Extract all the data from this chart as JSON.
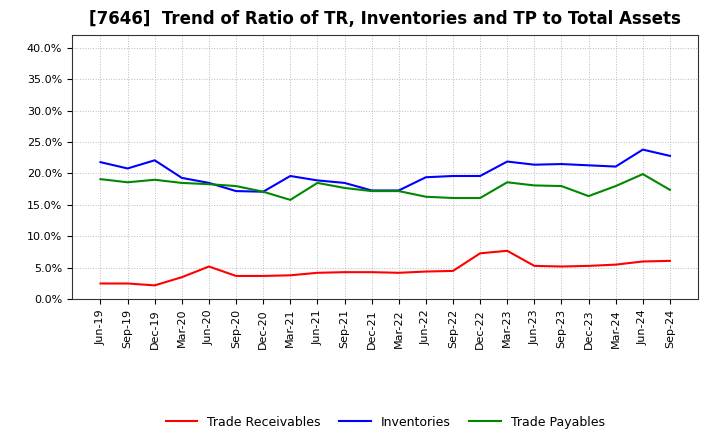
{
  "title": "[7646]  Trend of Ratio of TR, Inventories and TP to Total Assets",
  "x_labels": [
    "Jun-19",
    "Sep-19",
    "Dec-19",
    "Mar-20",
    "Jun-20",
    "Sep-20",
    "Dec-20",
    "Mar-21",
    "Jun-21",
    "Sep-21",
    "Dec-21",
    "Mar-22",
    "Jun-22",
    "Sep-22",
    "Dec-22",
    "Mar-23",
    "Jun-23",
    "Sep-23",
    "Dec-23",
    "Mar-24",
    "Jun-24",
    "Sep-24"
  ],
  "trade_receivables": [
    2.5,
    2.5,
    2.2,
    3.5,
    5.2,
    3.7,
    3.7,
    3.8,
    4.2,
    4.3,
    4.3,
    4.2,
    4.4,
    4.5,
    7.3,
    7.7,
    5.3,
    5.2,
    5.3,
    5.5,
    6.0,
    6.1
  ],
  "inventories": [
    21.8,
    20.8,
    22.1,
    19.3,
    18.5,
    17.2,
    17.1,
    19.6,
    18.9,
    18.5,
    17.3,
    17.3,
    19.4,
    19.6,
    19.6,
    21.9,
    21.4,
    21.5,
    21.3,
    21.1,
    23.8,
    22.8
  ],
  "trade_payables": [
    19.1,
    18.6,
    19.0,
    18.5,
    18.3,
    18.0,
    17.1,
    15.8,
    18.5,
    17.7,
    17.2,
    17.2,
    16.3,
    16.1,
    16.1,
    18.6,
    18.1,
    18.0,
    16.4,
    18.0,
    19.9,
    17.4
  ],
  "tr_color": "#ff0000",
  "inv_color": "#0000ff",
  "tp_color": "#008800",
  "ylim_min": 0,
  "ylim_max": 42,
  "yticks": [
    0,
    5,
    10,
    15,
    20,
    25,
    30,
    35,
    40
  ],
  "legend_labels": [
    "Trade Receivables",
    "Inventories",
    "Trade Payables"
  ],
  "bg_color": "#ffffff",
  "grid_color": "#bbbbbb",
  "title_fontsize": 12,
  "tick_fontsize": 8,
  "legend_fontsize": 9,
  "line_width": 1.5
}
